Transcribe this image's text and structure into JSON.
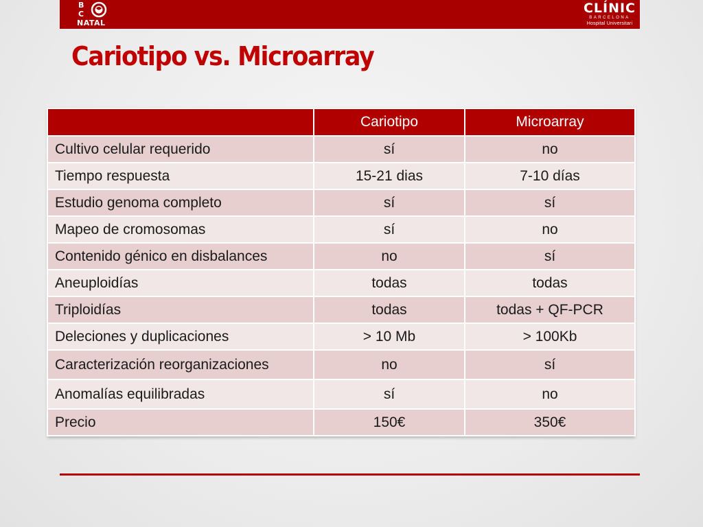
{
  "branding": {
    "left_logo": {
      "line1": "B",
      "line2": "C",
      "line3": "NATAL"
    },
    "right_logo": {
      "name": "CLÍNIC",
      "city": "BARCELONA",
      "subtitle": "Hospital Universitari"
    }
  },
  "title": "Cariotipo vs. Microarray",
  "colors": {
    "accent": "#b00000",
    "title": "#c00000",
    "row_dark": "#e7cfcf",
    "row_light": "#f2e7e7"
  },
  "table": {
    "headers": [
      "",
      "Cariotipo",
      "Microarray"
    ],
    "rows": [
      {
        "label": "Cultivo celular requerido",
        "cariotipo": "sí",
        "microarray": "no"
      },
      {
        "label": "Tiempo respuesta",
        "cariotipo": "15-21 dias",
        "microarray": "7-10 días"
      },
      {
        "label": "Estudio genoma completo",
        "cariotipo": "sí",
        "microarray": "sí"
      },
      {
        "label": "Mapeo de cromosomas",
        "cariotipo": "sí",
        "microarray": "no"
      },
      {
        "label": "Contenido génico  en disbalances",
        "cariotipo": "no",
        "microarray": "sí"
      },
      {
        "label": "Aneuploidías",
        "cariotipo": "todas",
        "microarray": "todas"
      },
      {
        "label": "Triploidías",
        "cariotipo": "todas",
        "microarray": "todas + QF-PCR"
      },
      {
        "label": "Deleciones y duplicaciones",
        "cariotipo": "> 10 Mb",
        "microarray": "> 100Kb"
      },
      {
        "label": "Caracterización reorganizaciones",
        "cariotipo": "no",
        "microarray": "sí"
      },
      {
        "label": "Anomalías equilibradas",
        "cariotipo": "sí",
        "microarray": "no"
      },
      {
        "label": "Precio",
        "cariotipo": "150€",
        "microarray": "350€"
      }
    ]
  }
}
